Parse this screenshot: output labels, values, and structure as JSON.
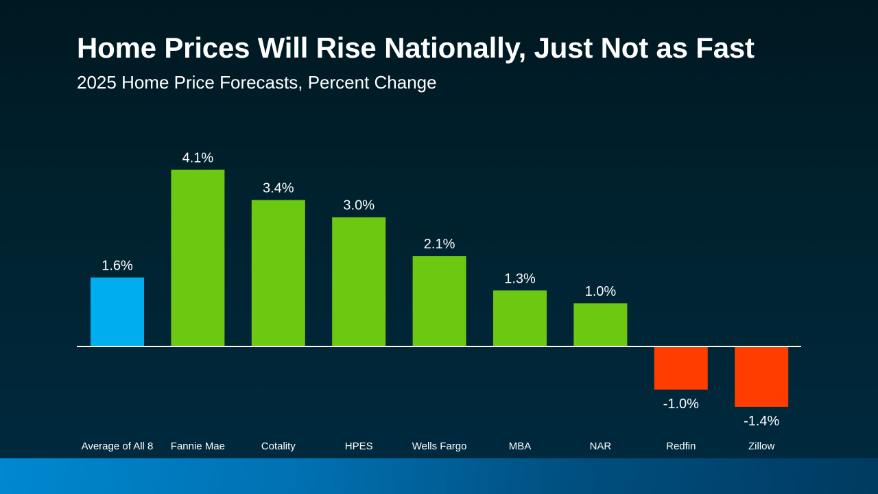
{
  "chart_data": {
    "type": "bar",
    "title": "Home Prices Will Rise Nationally, Just Not as Fast",
    "subtitle": "2025 Home Price Forecasts, Percent Change",
    "categories": [
      "Average of All 8",
      "Fannie Mae",
      "Cotality",
      "HPES",
      "Wells Fargo",
      "MBA",
      "NAR",
      "Redfin",
      "Zillow"
    ],
    "values": [
      1.6,
      4.1,
      3.4,
      3.0,
      2.1,
      1.3,
      1.0,
      -1.0,
      -1.4
    ],
    "data_labels": [
      "1.6%",
      "4.1%",
      "3.4%",
      "3.0%",
      "2.1%",
      "1.3%",
      "1.0%",
      "-1.0%",
      "-1.4%"
    ],
    "xlabel": "",
    "ylabel": "",
    "grid": false,
    "legend": "none",
    "colors": {
      "average": "#00aeef",
      "positive": "#6cc811",
      "negative": "#ff3d00",
      "baseline": "#ffffff"
    }
  }
}
